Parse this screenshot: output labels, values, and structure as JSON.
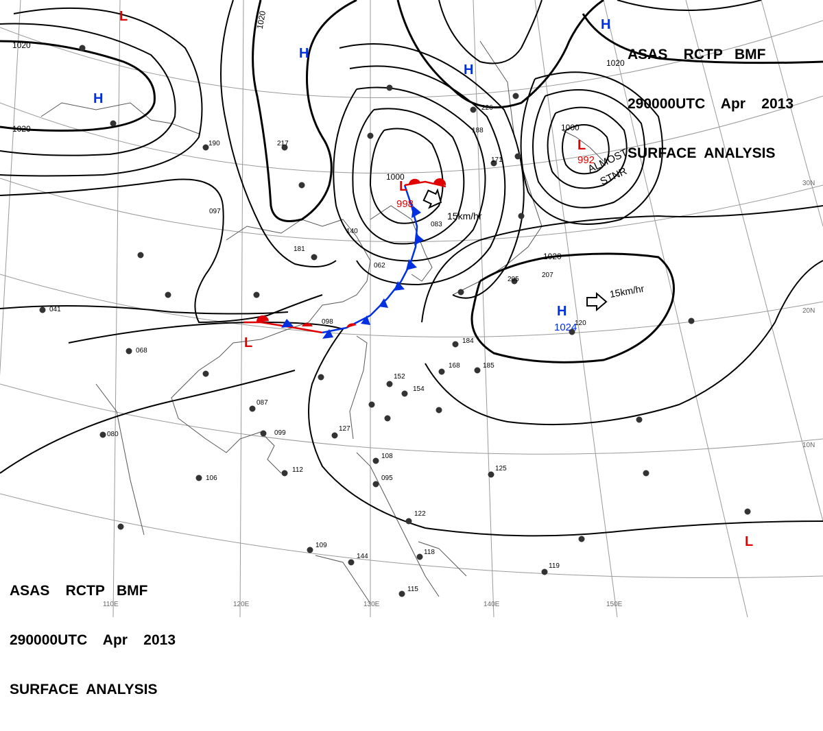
{
  "title": {
    "line1": "ASAS    RCTP   BMF",
    "line2": "290000UTC    Apr    2013",
    "line3": "SURFACE  ANALYSIS"
  },
  "colors": {
    "low": "#e00000",
    "high": "#0030e0",
    "isobar": "#000000",
    "graticule": "#999999",
    "coast": "#555555",
    "cold_front": "#0030e0",
    "warm_front": "#e00000"
  },
  "pressure_centers": [
    {
      "type": "L",
      "label": "L",
      "value": "998"
    },
    {
      "type": "L",
      "label": "L",
      "value": "992"
    },
    {
      "type": "H",
      "label": "H",
      "value": "1024"
    },
    {
      "type": "L",
      "label": "L",
      "value": ""
    },
    {
      "type": "L",
      "label": "L",
      "value": ""
    },
    {
      "type": "L",
      "label": "L",
      "value": ""
    },
    {
      "type": "H",
      "label": "H",
      "value": ""
    },
    {
      "type": "H",
      "label": "H",
      "value": ""
    },
    {
      "type": "H",
      "label": "H",
      "value": ""
    },
    {
      "type": "H",
      "label": "H",
      "value": ""
    }
  ],
  "isobar_labels": [
    "1020",
    "1020",
    "1020",
    "1020",
    "1020",
    "1000",
    "1000"
  ],
  "motion_labels": [
    "15km/hr",
    "15km/hr"
  ],
  "annotation": {
    "line1": "ALMOST",
    "line2": "STNR"
  },
  "lon_labels": [
    "110E",
    "120E",
    "130E",
    "140E",
    "150E"
  ],
  "lat_labels": [
    "30N",
    "20N",
    "10N"
  ],
  "station_values": [
    "217",
    "190",
    "226",
    "188",
    "171",
    "097",
    "106",
    "181",
    "140",
    "083",
    "062",
    "098",
    "152",
    "154",
    "127",
    "112",
    "099",
    "087",
    "080",
    "068",
    "041",
    "184",
    "168",
    "185",
    "122",
    "125",
    "108",
    "095",
    "118",
    "119",
    "109",
    "144",
    "115",
    "120",
    "207",
    "205"
  ]
}
